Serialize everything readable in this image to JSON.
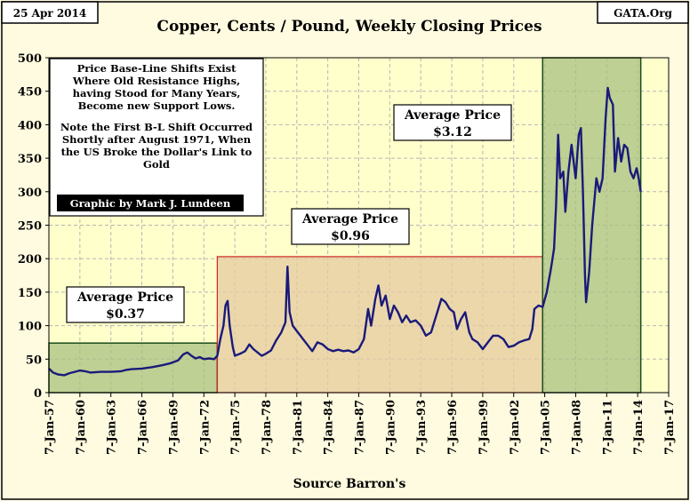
{
  "header": {
    "date": "25 Apr 2014",
    "source_tag": "GATA.Org"
  },
  "chart_data": {
    "type": "line",
    "title": "Copper, Cents / Pound, Weekly Closing Prices",
    "xlabel": "Source Barron's",
    "ylabel": "",
    "ylim": [
      0,
      500
    ],
    "xlim": [
      1957,
      2017
    ],
    "y_ticks": [
      0,
      50,
      100,
      150,
      200,
      250,
      300,
      350,
      400,
      450,
      500
    ],
    "x_ticks": [
      {
        "year": 1957,
        "label": "7-Jan-57"
      },
      {
        "year": 1960,
        "label": "7-Jan-60"
      },
      {
        "year": 1963,
        "label": "7-Jan-63"
      },
      {
        "year": 1966,
        "label": "7-Jan-66"
      },
      {
        "year": 1969,
        "label": "7-Jan-69"
      },
      {
        "year": 1972,
        "label": "7-Jan-72"
      },
      {
        "year": 1975,
        "label": "7-Jan-75"
      },
      {
        "year": 1978,
        "label": "7-Jan-78"
      },
      {
        "year": 1981,
        "label": "7-Jan-81"
      },
      {
        "year": 1984,
        "label": "7-Jan-84"
      },
      {
        "year": 1987,
        "label": "7-Jan-87"
      },
      {
        "year": 1990,
        "label": "7-Jan-90"
      },
      {
        "year": 1993,
        "label": "7-Jan-93"
      },
      {
        "year": 1996,
        "label": "7-Jan-96"
      },
      {
        "year": 1999,
        "label": "7-Jan-99"
      },
      {
        "year": 2002,
        "label": "7-Jan-02"
      },
      {
        "year": 2005,
        "label": "7-Jan-05"
      },
      {
        "year": 2008,
        "label": "7-Jan-08"
      },
      {
        "year": 2011,
        "label": "7-Jan-11"
      },
      {
        "year": 2014,
        "label": "7-Jan-14"
      },
      {
        "year": 2017,
        "label": "7-Jan-17"
      }
    ],
    "grid": true,
    "colors": {
      "plot_background": "#ffffcc",
      "line": "#1a1a7a",
      "band_green": "#a8c080",
      "band_tan": "#e6c9a0",
      "band_border_dark": "#1a4d1a",
      "band_border_red": "#cc2222"
    },
    "bands": [
      {
        "name": "band-1957-1973",
        "x_start": 1957,
        "x_end": 1973.3,
        "y_top": 74,
        "average_label": "Average Price",
        "average_value": "$0.37",
        "color": "green"
      },
      {
        "name": "band-1973-2004",
        "x_start": 1973.3,
        "x_end": 2004.8,
        "y_top": 203,
        "average_label": "Average Price",
        "average_value": "$0.96",
        "color": "tan"
      },
      {
        "name": "band-2004-2014",
        "x_start": 2004.8,
        "x_end": 2014.3,
        "y_top": 500,
        "average_label": "Average Price",
        "average_value": "$3.12",
        "color": "green"
      }
    ],
    "series": [
      {
        "points": [
          [
            1957.0,
            36
          ],
          [
            1957.4,
            30
          ],
          [
            1957.9,
            27
          ],
          [
            1958.5,
            26
          ],
          [
            1959.0,
            29
          ],
          [
            1959.5,
            31
          ],
          [
            1960.0,
            33
          ],
          [
            1960.5,
            32
          ],
          [
            1961.0,
            30
          ],
          [
            1962.0,
            31
          ],
          [
            1963.0,
            31
          ],
          [
            1964.0,
            32
          ],
          [
            1964.5,
            34
          ],
          [
            1965.0,
            35
          ],
          [
            1966.0,
            36
          ],
          [
            1967.0,
            38
          ],
          [
            1968.0,
            41
          ],
          [
            1968.8,
            44
          ],
          [
            1969.5,
            48
          ],
          [
            1970.0,
            57
          ],
          [
            1970.4,
            60
          ],
          [
            1970.8,
            55
          ],
          [
            1971.2,
            51
          ],
          [
            1971.6,
            53
          ],
          [
            1972.0,
            50
          ],
          [
            1972.5,
            51
          ],
          [
            1973.0,
            50
          ],
          [
            1973.3,
            55
          ],
          [
            1973.6,
            80
          ],
          [
            1973.9,
            100
          ],
          [
            1974.1,
            130
          ],
          [
            1974.3,
            137
          ],
          [
            1974.5,
            100
          ],
          [
            1974.8,
            68
          ],
          [
            1975.0,
            55
          ],
          [
            1975.5,
            58
          ],
          [
            1976.0,
            62
          ],
          [
            1976.4,
            72
          ],
          [
            1976.8,
            65
          ],
          [
            1977.2,
            60
          ],
          [
            1977.6,
            55
          ],
          [
            1978.0,
            58
          ],
          [
            1978.5,
            63
          ],
          [
            1979.0,
            78
          ],
          [
            1979.5,
            90
          ],
          [
            1979.9,
            105
          ],
          [
            1980.1,
            188
          ],
          [
            1980.3,
            120
          ],
          [
            1980.6,
            100
          ],
          [
            1981.0,
            92
          ],
          [
            1981.5,
            82
          ],
          [
            1982.0,
            72
          ],
          [
            1982.5,
            62
          ],
          [
            1983.0,
            75
          ],
          [
            1983.5,
            72
          ],
          [
            1984.0,
            65
          ],
          [
            1984.5,
            62
          ],
          [
            1985.0,
            64
          ],
          [
            1985.5,
            62
          ],
          [
            1986.0,
            63
          ],
          [
            1986.5,
            60
          ],
          [
            1987.0,
            65
          ],
          [
            1987.5,
            80
          ],
          [
            1987.9,
            125
          ],
          [
            1988.2,
            100
          ],
          [
            1988.6,
            140
          ],
          [
            1988.9,
            160
          ],
          [
            1989.2,
            130
          ],
          [
            1989.6,
            145
          ],
          [
            1990.0,
            110
          ],
          [
            1990.4,
            130
          ],
          [
            1990.8,
            120
          ],
          [
            1991.2,
            105
          ],
          [
            1991.6,
            115
          ],
          [
            1992.0,
            105
          ],
          [
            1992.5,
            108
          ],
          [
            1993.0,
            100
          ],
          [
            1993.5,
            85
          ],
          [
            1994.0,
            90
          ],
          [
            1994.5,
            115
          ],
          [
            1995.0,
            140
          ],
          [
            1995.4,
            135
          ],
          [
            1995.8,
            125
          ],
          [
            1996.2,
            120
          ],
          [
            1996.5,
            95
          ],
          [
            1996.9,
            110
          ],
          [
            1997.3,
            120
          ],
          [
            1997.7,
            90
          ],
          [
            1998.0,
            80
          ],
          [
            1998.5,
            75
          ],
          [
            1999.0,
            65
          ],
          [
            1999.5,
            75
          ],
          [
            2000.0,
            85
          ],
          [
            2000.5,
            85
          ],
          [
            2001.0,
            80
          ],
          [
            2001.5,
            68
          ],
          [
            2002.0,
            70
          ],
          [
            2002.5,
            75
          ],
          [
            2003.0,
            78
          ],
          [
            2003.5,
            80
          ],
          [
            2003.8,
            95
          ],
          [
            2004.0,
            125
          ],
          [
            2004.4,
            130
          ],
          [
            2004.8,
            128
          ],
          [
            2005.2,
            150
          ],
          [
            2005.6,
            185
          ],
          [
            2005.9,
            215
          ],
          [
            2006.1,
            280
          ],
          [
            2006.3,
            385
          ],
          [
            2006.5,
            320
          ],
          [
            2006.8,
            330
          ],
          [
            2007.0,
            270
          ],
          [
            2007.3,
            330
          ],
          [
            2007.6,
            370
          ],
          [
            2008.0,
            320
          ],
          [
            2008.3,
            385
          ],
          [
            2008.5,
            395
          ],
          [
            2008.7,
            300
          ],
          [
            2008.9,
            175
          ],
          [
            2009.0,
            135
          ],
          [
            2009.3,
            180
          ],
          [
            2009.6,
            250
          ],
          [
            2010.0,
            320
          ],
          [
            2010.3,
            300
          ],
          [
            2010.6,
            320
          ],
          [
            2010.9,
            410
          ],
          [
            2011.1,
            455
          ],
          [
            2011.3,
            440
          ],
          [
            2011.6,
            430
          ],
          [
            2011.8,
            330
          ],
          [
            2012.1,
            380
          ],
          [
            2012.4,
            345
          ],
          [
            2012.7,
            370
          ],
          [
            2013.0,
            365
          ],
          [
            2013.3,
            330
          ],
          [
            2013.6,
            320
          ],
          [
            2013.9,
            335
          ],
          [
            2014.1,
            320
          ],
          [
            2014.3,
            300
          ]
        ]
      }
    ],
    "note": {
      "para1": [
        "Price Base-Line Shifts Exist",
        "Where Old Resistance Highs,",
        "having Stood for Many Years,",
        "Become new Support Lows."
      ],
      "para2": [
        "Note the First B-L Shift Occurred",
        "Shortly after August 1971, When",
        "the US Broke the Dollar's Link to",
        "Gold"
      ],
      "credit": "Graphic by Mark J. Lundeen"
    }
  }
}
